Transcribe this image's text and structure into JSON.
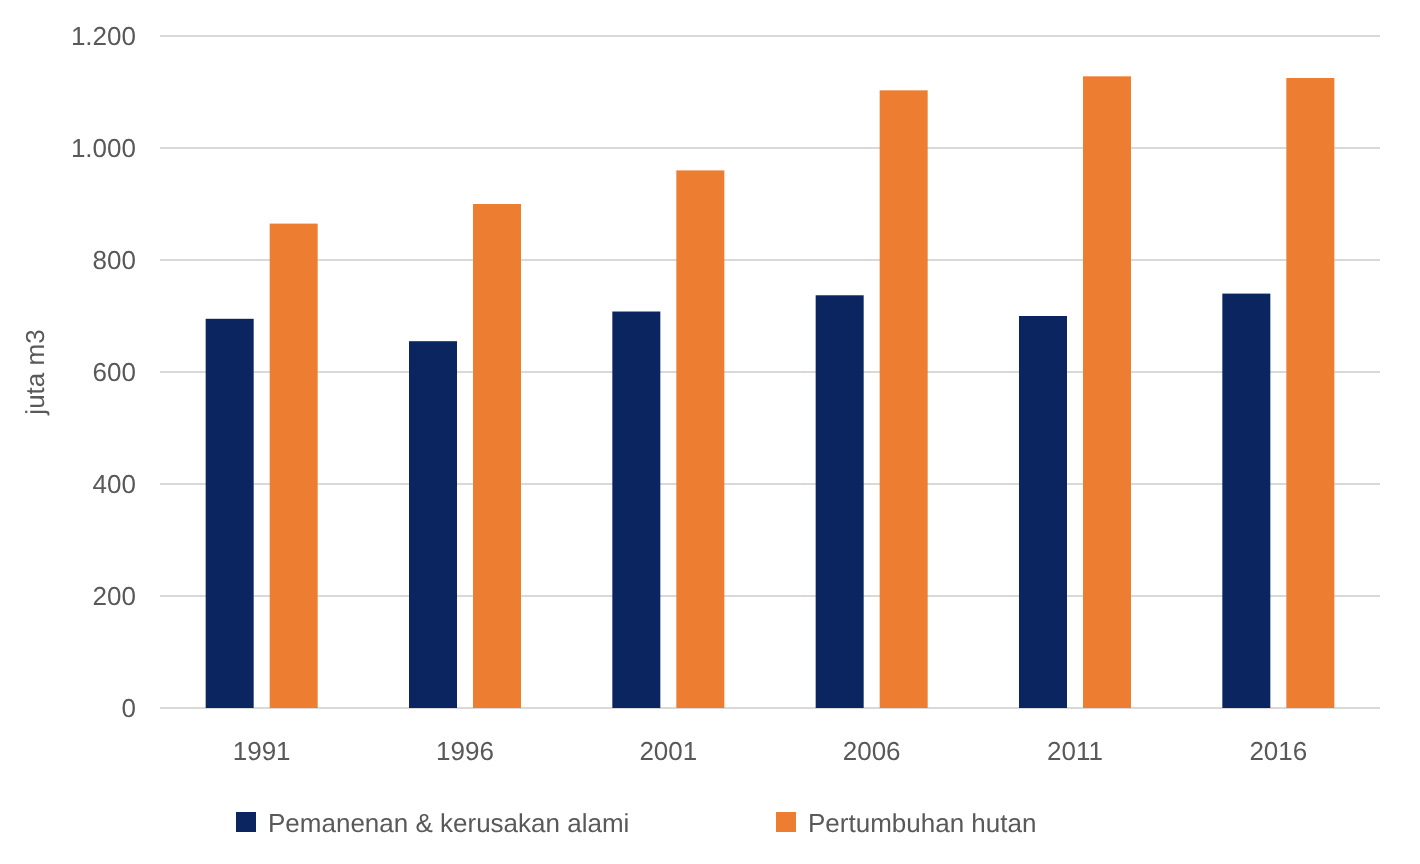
{
  "chart_data": {
    "type": "bar",
    "ylabel": "juta m3",
    "categories": [
      "1991",
      "1996",
      "2001",
      "2006",
      "2011",
      "2016"
    ],
    "series": [
      {
        "name": "Pemanenan & kerusakan alami",
        "color": "#0b2560",
        "values": [
          695,
          655,
          708,
          737,
          700,
          740
        ]
      },
      {
        "name": "Pertumbuhan hutan",
        "color": "#ed7d31",
        "values": [
          865,
          900,
          960,
          1103,
          1128,
          1125
        ]
      }
    ],
    "ylim": [
      0,
      1200
    ],
    "yticks": [
      0,
      200,
      400,
      600,
      800,
      {
        "value": 1000,
        "label": "1.000"
      },
      {
        "value": 1200,
        "label": "1.200"
      }
    ],
    "grid": "y",
    "legend": "bottom"
  }
}
